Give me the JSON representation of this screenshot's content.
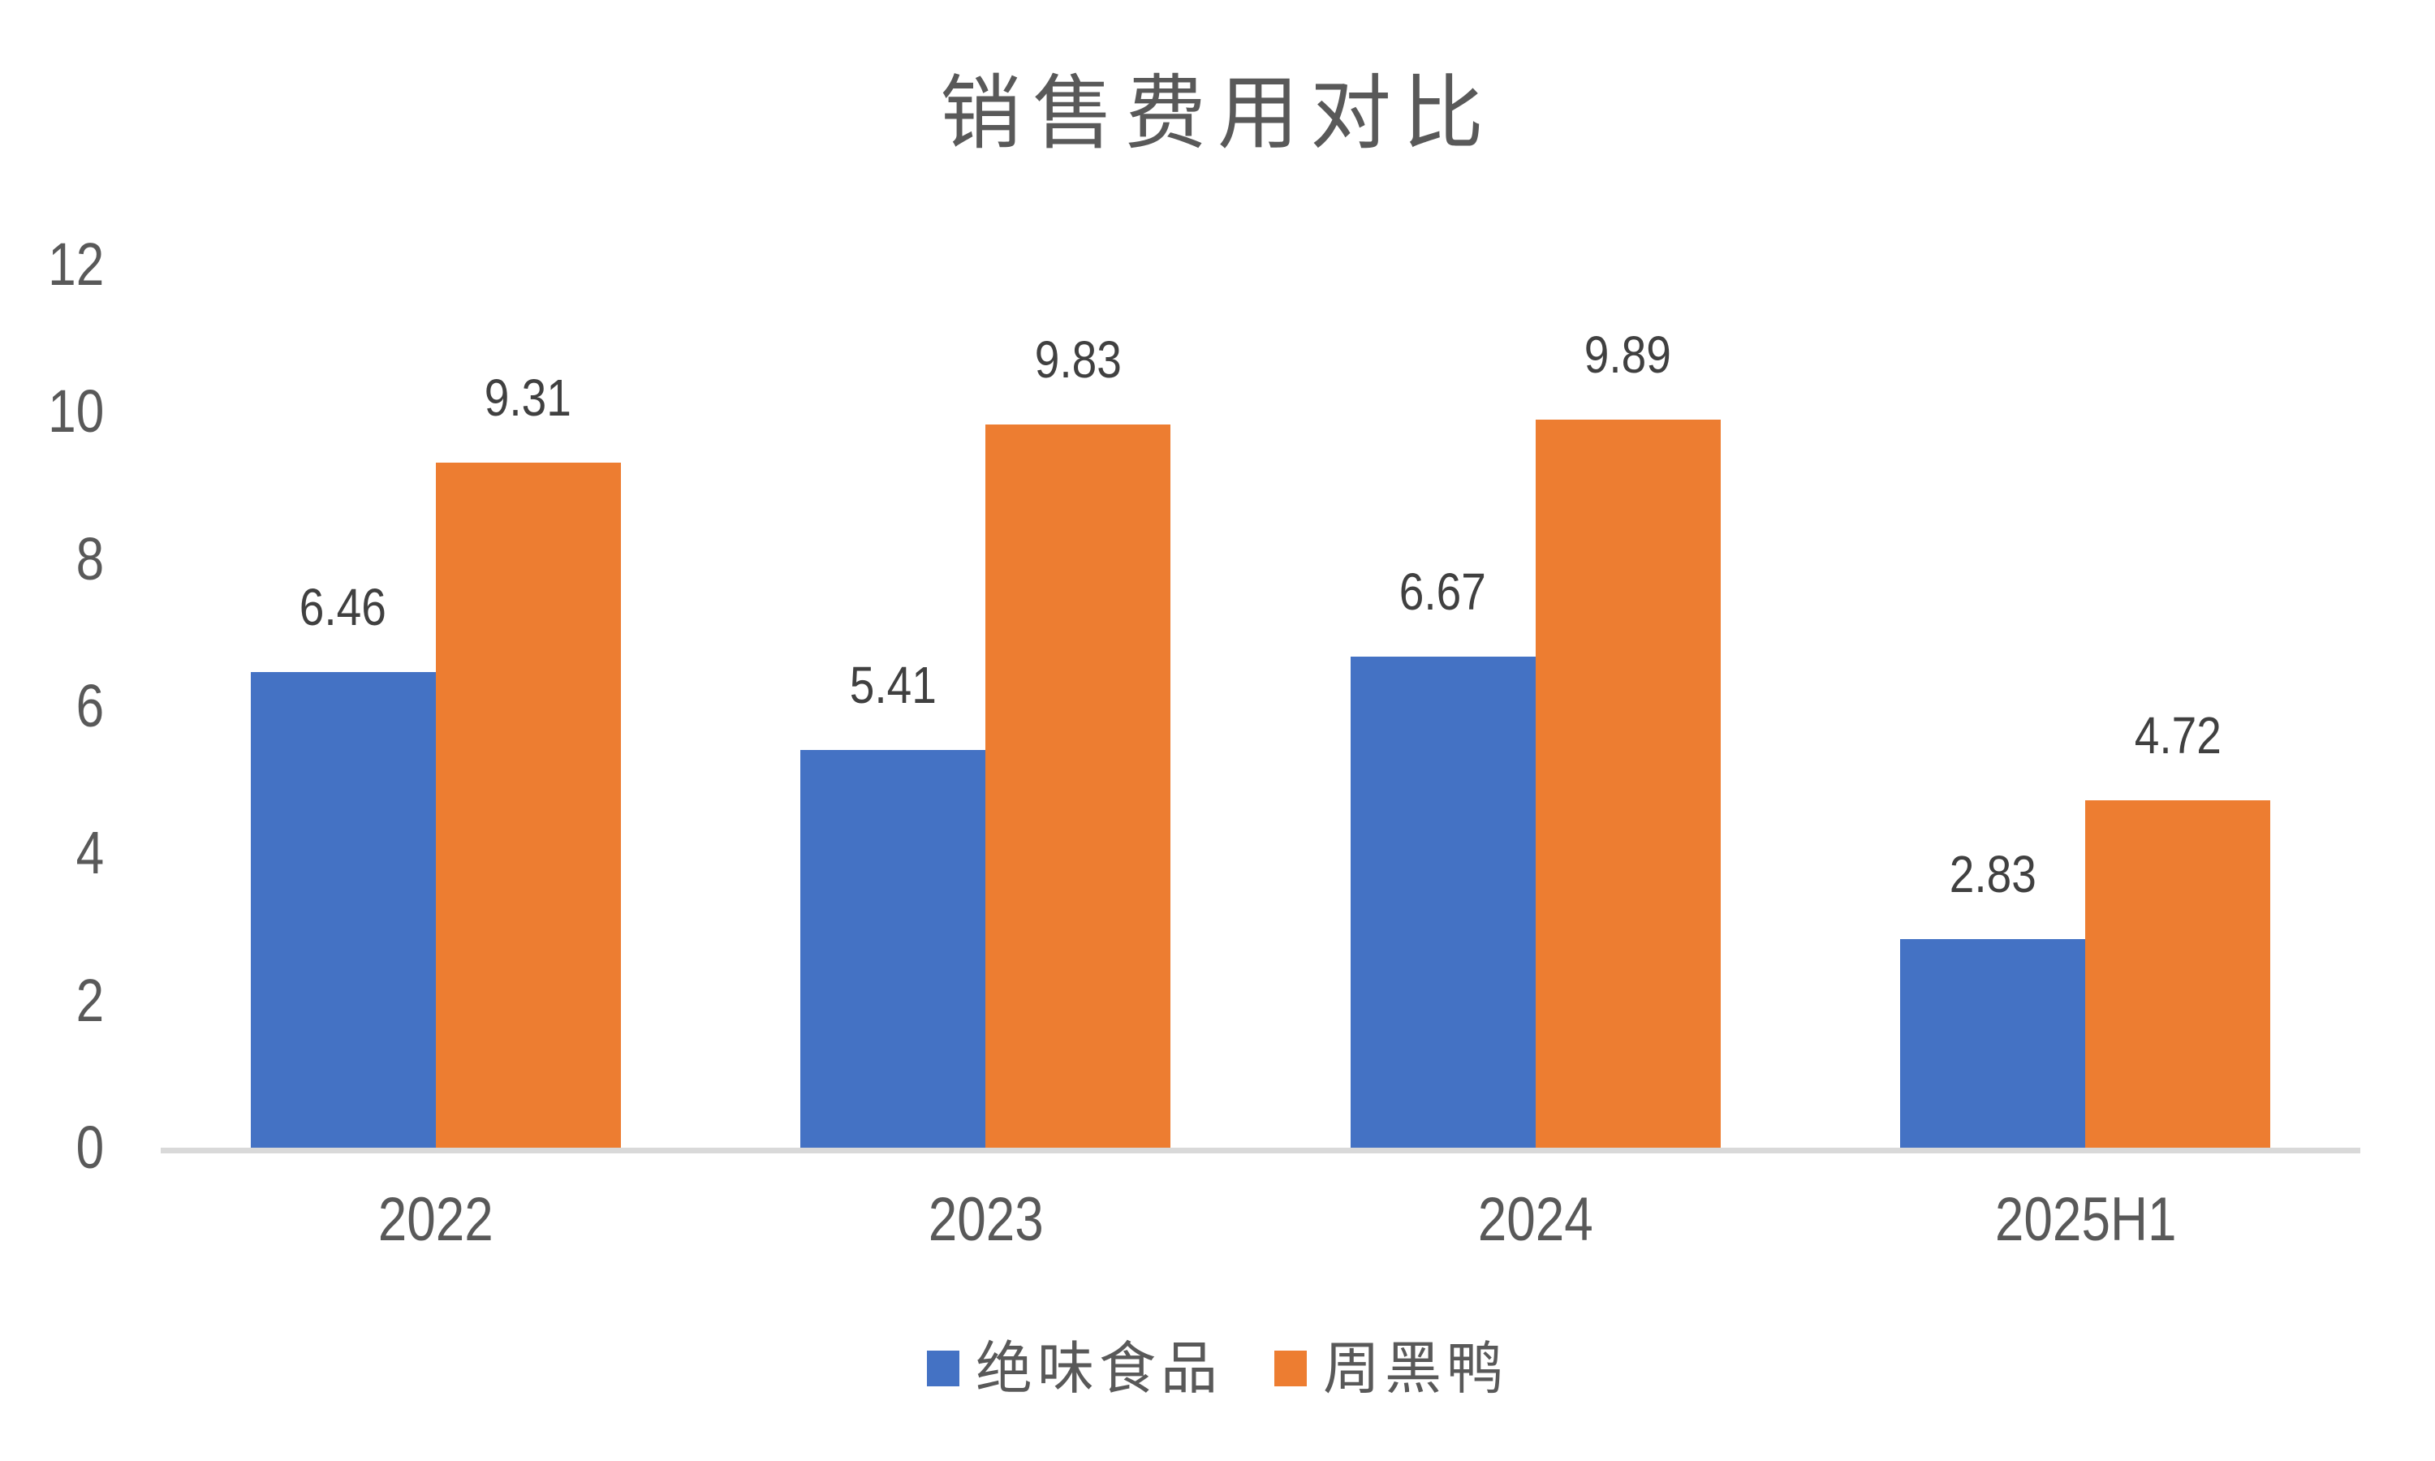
{
  "chart": {
    "title": "销售费用对比",
    "background_color": "#ffffff",
    "title_color": "#595959",
    "axis_label_color": "#595959",
    "data_label_color": "#404040",
    "axis_line_color": "#d9d9d9"
  },
  "chart_data": {
    "type": "bar",
    "title": "销售费用对比",
    "categories": [
      "2022",
      "2023",
      "2024",
      "2025H1"
    ],
    "series": [
      {
        "name": "绝味食品",
        "slug": "juewei-foods",
        "color": "#4472C4",
        "values": [
          6.46,
          5.41,
          6.67,
          2.83
        ]
      },
      {
        "name": "周黑鸭",
        "slug": "zhouheiya",
        "color": "#ED7D31",
        "values": [
          9.31,
          9.83,
          9.89,
          4.72
        ]
      }
    ],
    "xlabel": "",
    "ylabel": "",
    "ylim": [
      0,
      12
    ],
    "yticks": [
      0,
      2,
      4,
      6,
      8,
      10,
      12
    ],
    "grid": false,
    "data_labels": true,
    "legend_position": "bottom"
  },
  "legend": {
    "items": [
      {
        "label": "绝味食品",
        "color": "#4472C4"
      },
      {
        "label": "周黑鸭",
        "color": "#ED7D31"
      }
    ]
  }
}
